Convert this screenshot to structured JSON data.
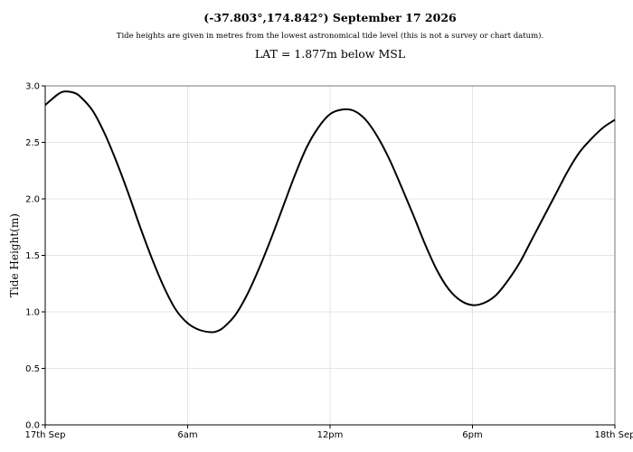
{
  "header": {
    "title": "(-37.803°,174.842°) September 17 2026",
    "subtitle": "Tide heights are given in metres from the lowest astronomical tide level (this is not a survey or chart datum).",
    "lat_note": "LAT = 1.877m below MSL"
  },
  "chart_data": {
    "type": "line",
    "title": "(-37.803°,174.842°) September 17 2026",
    "xlabel": "",
    "ylabel": "Tide Height(m)",
    "xlim": [
      0,
      24
    ],
    "ylim": [
      0,
      3.0
    ],
    "x_unit": "hours from 00:00 17th Sep",
    "x_ticks": [
      {
        "x": 0,
        "label": "17th Sep"
      },
      {
        "x": 6,
        "label": "6am"
      },
      {
        "x": 12,
        "label": "12pm"
      },
      {
        "x": 18,
        "label": "6pm"
      },
      {
        "x": 24,
        "label": "18th Sep"
      }
    ],
    "y_ticks": [
      0.0,
      0.5,
      1.0,
      1.5,
      2.0,
      2.5,
      3.0
    ],
    "y_tick_labels": [
      "0.0",
      "0.5",
      "1.0",
      "1.5",
      "2.0",
      "2.5",
      "3.0"
    ],
    "grid": true,
    "colors": {
      "line": "#000000",
      "grid": "#dddddd",
      "axis": "#000000"
    },
    "series": [
      {
        "x": [
          0,
          0.5,
          0.8,
          1.2,
          1.5,
          2.0,
          2.5,
          3.0,
          3.5,
          4.0,
          4.5,
          5.0,
          5.5,
          6.0,
          6.5,
          7.0,
          7.25,
          7.5,
          8.0,
          8.5,
          9.0,
          9.5,
          10.0,
          10.5,
          11.0,
          11.5,
          12.0,
          12.5,
          13.0,
          13.5,
          14.0,
          14.5,
          15.0,
          15.5,
          16.0,
          16.5,
          17.0,
          17.5,
          18.0,
          18.5,
          19.0,
          19.5,
          20.0,
          20.5,
          21.0,
          21.5,
          22.0,
          22.5,
          23.0,
          23.5,
          24.0
        ],
        "y": [
          2.83,
          2.92,
          2.95,
          2.94,
          2.9,
          2.78,
          2.58,
          2.33,
          2.05,
          1.75,
          1.47,
          1.22,
          1.02,
          0.9,
          0.84,
          0.82,
          0.83,
          0.86,
          0.97,
          1.15,
          1.38,
          1.64,
          1.92,
          2.2,
          2.45,
          2.63,
          2.75,
          2.79,
          2.78,
          2.7,
          2.55,
          2.35,
          2.11,
          1.86,
          1.6,
          1.37,
          1.2,
          1.1,
          1.06,
          1.08,
          1.15,
          1.28,
          1.44,
          1.64,
          1.84,
          2.04,
          2.24,
          2.41,
          2.53,
          2.63,
          2.7
        ]
      }
    ]
  }
}
